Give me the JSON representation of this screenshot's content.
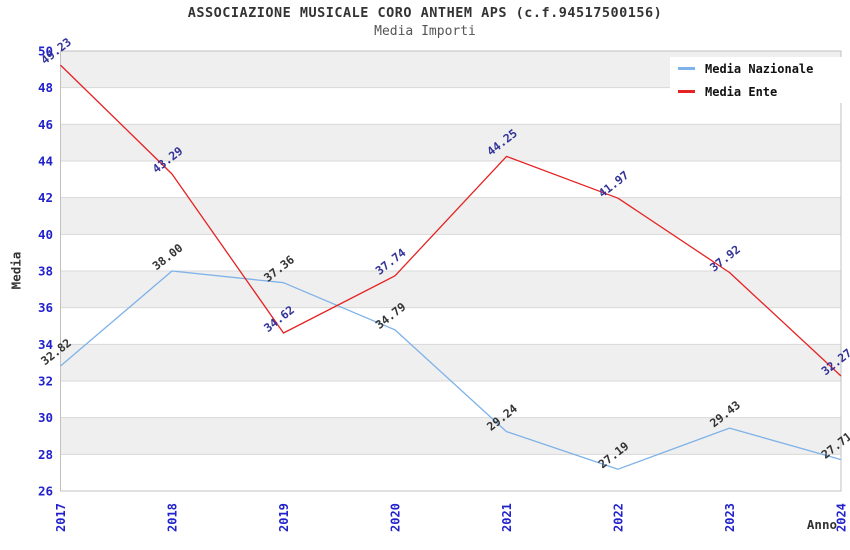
{
  "header": {
    "title": "ASSOCIAZIONE MUSICALE CORO ANTHEM APS (c.f.94517500156)",
    "subtitle": "Media Importi"
  },
  "axes": {
    "y_title": "Media",
    "x_title": "Anno"
  },
  "legend": {
    "items": [
      {
        "label": "Media Nazionale",
        "color": "#7EB2E8"
      },
      {
        "label": "Media Ente",
        "color": "#E62222"
      }
    ]
  },
  "chart_data": {
    "type": "line",
    "title": "ASSOCIAZIONE MUSICALE CORO ANTHEM APS (c.f.94517500156)",
    "subtitle": "Media Importi",
    "xlabel": "Anno",
    "ylabel": "Media",
    "categories": [
      "2017",
      "2018",
      "2019",
      "2020",
      "2021",
      "2022",
      "2023",
      "2024"
    ],
    "series": [
      {
        "name": "Media Nazionale",
        "color": "#7EB2E8",
        "label_color": "#333333",
        "values": [
          32.82,
          38.0,
          37.36,
          34.79,
          29.24,
          27.19,
          29.43,
          27.71
        ],
        "labels": [
          "32.82",
          "38.00",
          "37.36",
          "34.79",
          "29.24",
          "27.19",
          "29.43",
          "27.71"
        ]
      },
      {
        "name": "Media Ente",
        "color": "#E62222",
        "label_color": "#333399",
        "values": [
          49.23,
          43.29,
          34.62,
          37.74,
          44.25,
          41.97,
          37.92,
          32.27
        ],
        "labels": [
          "49.23",
          "43.29",
          "34.62",
          "37.74",
          "44.25",
          "41.97",
          "37.92",
          "32.27"
        ]
      }
    ],
    "ylim": [
      26,
      50
    ],
    "y_step": 2,
    "grid": true,
    "legend_position": "top-right",
    "band_colors": [
      "#FFFFFF",
      "#EFEFEF"
    ],
    "tick_color": "#2222CC",
    "grid_color": "#D8D8D8",
    "border_color": "#C0C0C0",
    "label_rotation_deg": -38
  }
}
